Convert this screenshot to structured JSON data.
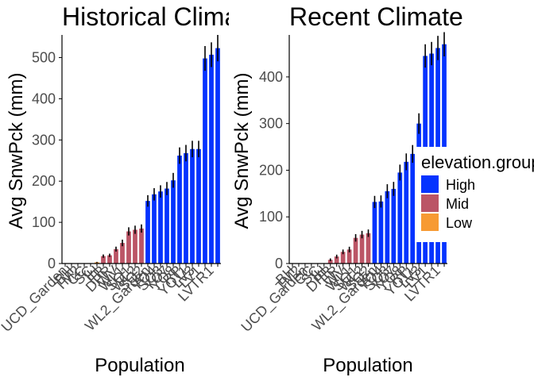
{
  "colors": {
    "High": "#0433ff",
    "Mid": "#bb5566",
    "Low": "#f79a33",
    "errorbar": "#000000",
    "axis": "#000000"
  },
  "legend": {
    "title": "elevation.group",
    "items": [
      {
        "label": "High",
        "color": "#0433ff"
      },
      {
        "label": "Mid",
        "color": "#bb5566"
      },
      {
        "label": "Low",
        "color": "#f79a33"
      }
    ]
  },
  "chart_data": [
    {
      "type": "bar",
      "title": "Historical Climate",
      "xlabel": "Population",
      "ylabel": "Avg SnwPck (mm)",
      "ylim": [
        0,
        555
      ],
      "yticks": [
        0,
        100,
        200,
        300,
        400,
        500
      ],
      "grid": false,
      "legend_position": "none",
      "bars": [
        {
          "category": "UCD_Garden",
          "value": 0,
          "err": 0,
          "group": "Low",
          "show_label": true
        },
        {
          "category": "BH",
          "value": 0,
          "err": 0,
          "group": "Low",
          "show_label": true
        },
        {
          "category": "TM2",
          "value": 0,
          "err": 0,
          "group": "Low",
          "show_label": true
        },
        {
          "category": "CC",
          "value": 0,
          "err": 0,
          "group": "Low",
          "show_label": true
        },
        {
          "category": "SC",
          "value": 0,
          "err": 0,
          "group": "Low",
          "show_label": true
        },
        {
          "category": "IH",
          "value": 3,
          "err": 1,
          "group": "Low",
          "show_label": true
        },
        {
          "category": "FR",
          "value": 18,
          "err": 4,
          "group": "Mid",
          "show_label": true
        },
        {
          "category": "DPR",
          "value": 20,
          "err": 4,
          "group": "Mid",
          "show_label": true
        },
        {
          "category": "WV",
          "value": 35,
          "err": 6,
          "group": "Mid",
          "show_label": true
        },
        {
          "category": "WL1",
          "value": 50,
          "err": 8,
          "group": "Mid",
          "show_label": true
        },
        {
          "category": "SQ1",
          "value": 78,
          "err": 10,
          "group": "Mid",
          "show_label": true
        },
        {
          "category": "WL2",
          "value": 82,
          "err": 10,
          "group": "Mid",
          "show_label": true
        },
        {
          "category": "SQ2",
          "value": 85,
          "err": 10,
          "group": "Mid",
          "show_label": true
        },
        {
          "category": "WL2_Garden",
          "value": 152,
          "err": 14,
          "group": "High",
          "show_label": true
        },
        {
          "category": "YO4",
          "value": 168,
          "err": 15,
          "group": "High",
          "show_label": true
        },
        {
          "category": "SQ3",
          "value": 175,
          "err": 15,
          "group": "High",
          "show_label": true
        },
        {
          "category": "YO7",
          "value": 182,
          "err": 16,
          "group": "High",
          "show_label": true
        },
        {
          "category": "YO8",
          "value": 202,
          "err": 18,
          "group": "High",
          "show_label": true
        },
        {
          "category": "RP",
          "value": 262,
          "err": 20,
          "group": "High",
          "show_label": true
        },
        {
          "category": "YO11",
          "value": 268,
          "err": 20,
          "group": "High",
          "show_label": true
        },
        {
          "category": "LV3",
          "value": 278,
          "err": 20,
          "group": "High",
          "show_label": true
        },
        {
          "category": "LV1",
          "value": 278,
          "err": 20,
          "group": "High",
          "show_label": true
        },
        {
          "category": "SQ",
          "value": 498,
          "err": 30,
          "group": "High",
          "show_label": false
        },
        {
          "category": "LVTR1",
          "value": 507,
          "err": 30,
          "group": "High",
          "show_label": true
        },
        {
          "category": "LVTR",
          "value": 523,
          "err": 32,
          "group": "High",
          "show_label": false
        }
      ]
    },
    {
      "type": "bar",
      "title": "Recent Climate",
      "xlabel": "Population",
      "ylabel": "Avg SnwPck (mm)",
      "ylim": [
        0,
        490
      ],
      "yticks": [
        0,
        100,
        200,
        300,
        400
      ],
      "grid": false,
      "legend_position": "right",
      "bars": [
        {
          "category": "BH",
          "value": 0,
          "err": 0,
          "group": "Low",
          "show_label": true
        },
        {
          "category": "TM2",
          "value": 0,
          "err": 0,
          "group": "Low",
          "show_label": true
        },
        {
          "category": "UCD_Garden",
          "value": 0,
          "err": 0,
          "group": "Low",
          "show_label": true
        },
        {
          "category": "CC",
          "value": 0,
          "err": 0,
          "group": "Low",
          "show_label": true
        },
        {
          "category": "SC",
          "value": 0,
          "err": 0,
          "group": "Low",
          "show_label": true
        },
        {
          "category": "IH",
          "value": 0,
          "err": 0,
          "group": "Low",
          "show_label": true
        },
        {
          "category": "DPR",
          "value": 8,
          "err": 3,
          "group": "Mid",
          "show_label": true
        },
        {
          "category": "FR",
          "value": 15,
          "err": 4,
          "group": "Mid",
          "show_label": true
        },
        {
          "category": "WV",
          "value": 25,
          "err": 5,
          "group": "Mid",
          "show_label": true
        },
        {
          "category": "WL1",
          "value": 30,
          "err": 6,
          "group": "Mid",
          "show_label": true
        },
        {
          "category": "SQ1",
          "value": 55,
          "err": 8,
          "group": "Mid",
          "show_label": true
        },
        {
          "category": "WL2",
          "value": 62,
          "err": 8,
          "group": "Mid",
          "show_label": true
        },
        {
          "category": "SQ2",
          "value": 65,
          "err": 8,
          "group": "Mid",
          "show_label": true
        },
        {
          "category": "WL2_Garden",
          "value": 132,
          "err": 13,
          "group": "High",
          "show_label": true
        },
        {
          "category": "YO4",
          "value": 133,
          "err": 13,
          "group": "High",
          "show_label": true
        },
        {
          "category": "SQ3",
          "value": 155,
          "err": 15,
          "group": "High",
          "show_label": true
        },
        {
          "category": "YO7",
          "value": 160,
          "err": 15,
          "group": "High",
          "show_label": true
        },
        {
          "category": "YO8",
          "value": 195,
          "err": 17,
          "group": "High",
          "show_label": true
        },
        {
          "category": "RP",
          "value": 218,
          "err": 18,
          "group": "High",
          "show_label": true
        },
        {
          "category": "YO11",
          "value": 235,
          "err": 19,
          "group": "High",
          "show_label": true
        },
        {
          "category": "LV3",
          "value": 300,
          "err": 22,
          "group": "High",
          "show_label": true
        },
        {
          "category": "LV1",
          "value": 445,
          "err": 25,
          "group": "High",
          "show_label": true
        },
        {
          "category": "SQ",
          "value": 450,
          "err": 25,
          "group": "High",
          "show_label": false
        },
        {
          "category": "LVTR1",
          "value": 462,
          "err": 26,
          "group": "High",
          "show_label": true
        },
        {
          "category": "LVTR",
          "value": 470,
          "err": 26,
          "group": "High",
          "show_label": false
        }
      ]
    }
  ]
}
